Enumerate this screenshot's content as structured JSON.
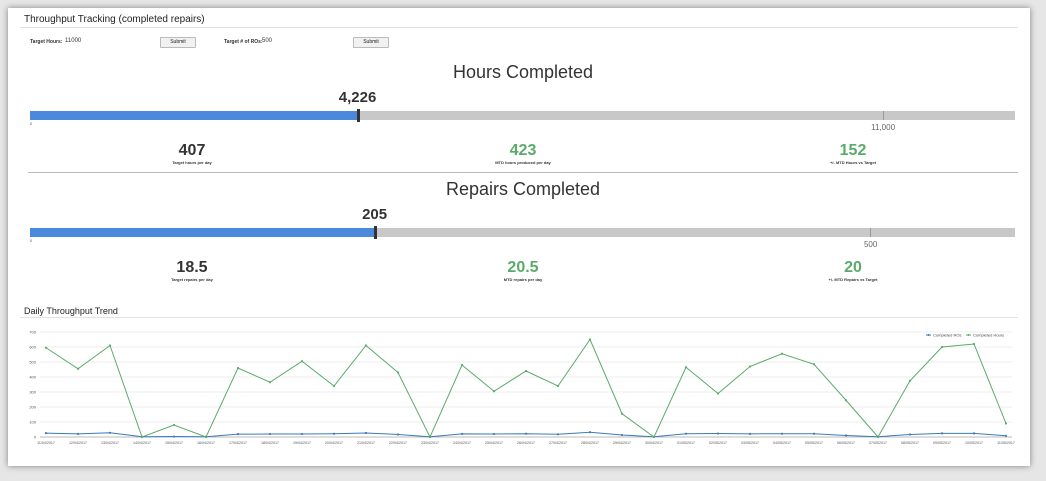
{
  "panel_title": "Throughput Tracking (completed repairs)",
  "controls": {
    "target_hours_label": "Target Hours:",
    "target_hours_value": "11000",
    "submit1": "Submit",
    "target_ros_label": "Target # of ROs:",
    "target_ros_value": "500",
    "submit2": "Submit"
  },
  "hours": {
    "heading": "Hours Completed",
    "value_label": "4,226",
    "value": 4226,
    "axis_max": 12700,
    "zero": "0",
    "target_label": "11,000",
    "target": 11000,
    "metrics": [
      {
        "value": "407",
        "caption": "Target hours per day",
        "color": "dark"
      },
      {
        "value": "423",
        "caption": "MTD hours produced per day",
        "color": "green"
      },
      {
        "value": "152",
        "caption": "+/- MTD Hours vs Target",
        "color": "green"
      }
    ]
  },
  "repairs": {
    "heading": "Repairs Completed",
    "value_label": "205",
    "value": 205,
    "axis_max": 586,
    "zero": "0",
    "target_label": "500",
    "target": 500,
    "metrics": [
      {
        "value": "18.5",
        "caption": "Target repairs per day",
        "color": "dark"
      },
      {
        "value": "20.5",
        "caption": "MTD repairs per day",
        "color": "green"
      },
      {
        "value": "20",
        "caption": "+/- MTD Repairs vs Target",
        "color": "green"
      }
    ]
  },
  "trend": {
    "title": "Daily Throughput Trend"
  },
  "chart_data": {
    "type": "line",
    "x": [
      "11/04/2017",
      "12/04/2017",
      "13/04/2017",
      "14/04/2017",
      "15/04/2017",
      "16/04/2017",
      "17/04/2017",
      "18/04/2017",
      "19/04/2017",
      "20/04/2017",
      "21/04/2017",
      "22/04/2017",
      "23/04/2017",
      "24/04/2017",
      "25/04/2017",
      "26/04/2017",
      "27/04/2017",
      "28/04/2017",
      "29/04/2017",
      "30/04/2017",
      "01/05/2017",
      "02/05/2017",
      "03/05/2017",
      "04/05/2017",
      "05/05/2017",
      "06/05/2017",
      "07/05/2017",
      "08/05/2017",
      "09/05/2017",
      "10/05/2017",
      "11/05/2017"
    ],
    "series": [
      {
        "name": "Completed ROs",
        "color": "#3a7ab8",
        "values": [
          26,
          21,
          28,
          2,
          3,
          2,
          19,
          20,
          20,
          22,
          27,
          17,
          2,
          21,
          20,
          22,
          18,
          32,
          13,
          2,
          22,
          23,
          21,
          22,
          22,
          10,
          2,
          17,
          24,
          24,
          8
        ]
      },
      {
        "name": "Completed Hours",
        "color": "#5aaa6a",
        "values": [
          595,
          455,
          610,
          0,
          80,
          0,
          460,
          365,
          505,
          340,
          610,
          430,
          0,
          480,
          305,
          440,
          340,
          650,
          155,
          0,
          465,
          290,
          470,
          555,
          485,
          245,
          0,
          375,
          600,
          620,
          90
        ]
      }
    ],
    "ylim": [
      0,
      700
    ],
    "yticks": [
      0,
      100,
      200,
      300,
      400,
      500,
      600,
      700
    ],
    "legend": "top-right",
    "grid": true
  }
}
